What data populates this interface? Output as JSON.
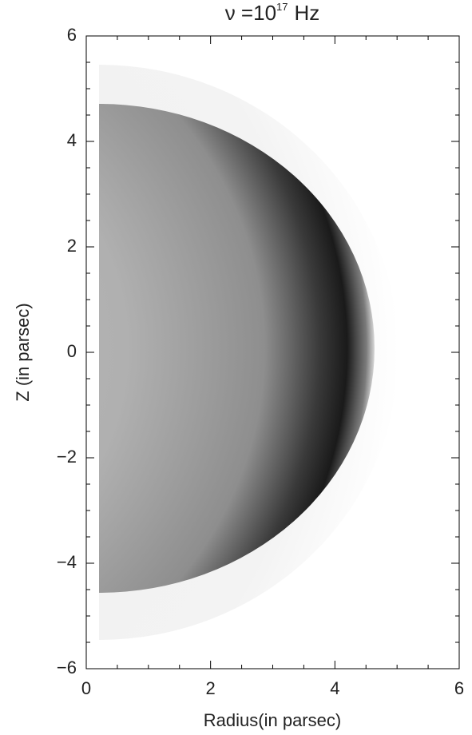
{
  "chart_data": {
    "type": "image",
    "title": [
      "ν =10",
      "17",
      "Hz"
    ],
    "xlabel": "Radius(in parsec)",
    "ylabel": "Z (in parsec)",
    "xlim": [
      0,
      6
    ],
    "ylim": [
      -6,
      6
    ],
    "xticks": [
      0,
      2,
      4,
      6
    ],
    "yticks": [
      {
        "value": -6,
        "label": "−6"
      },
      {
        "value": -4,
        "label": "−4"
      },
      {
        "value": -2,
        "label": "−2"
      },
      0,
      2,
      4,
      6
    ]
  }
}
